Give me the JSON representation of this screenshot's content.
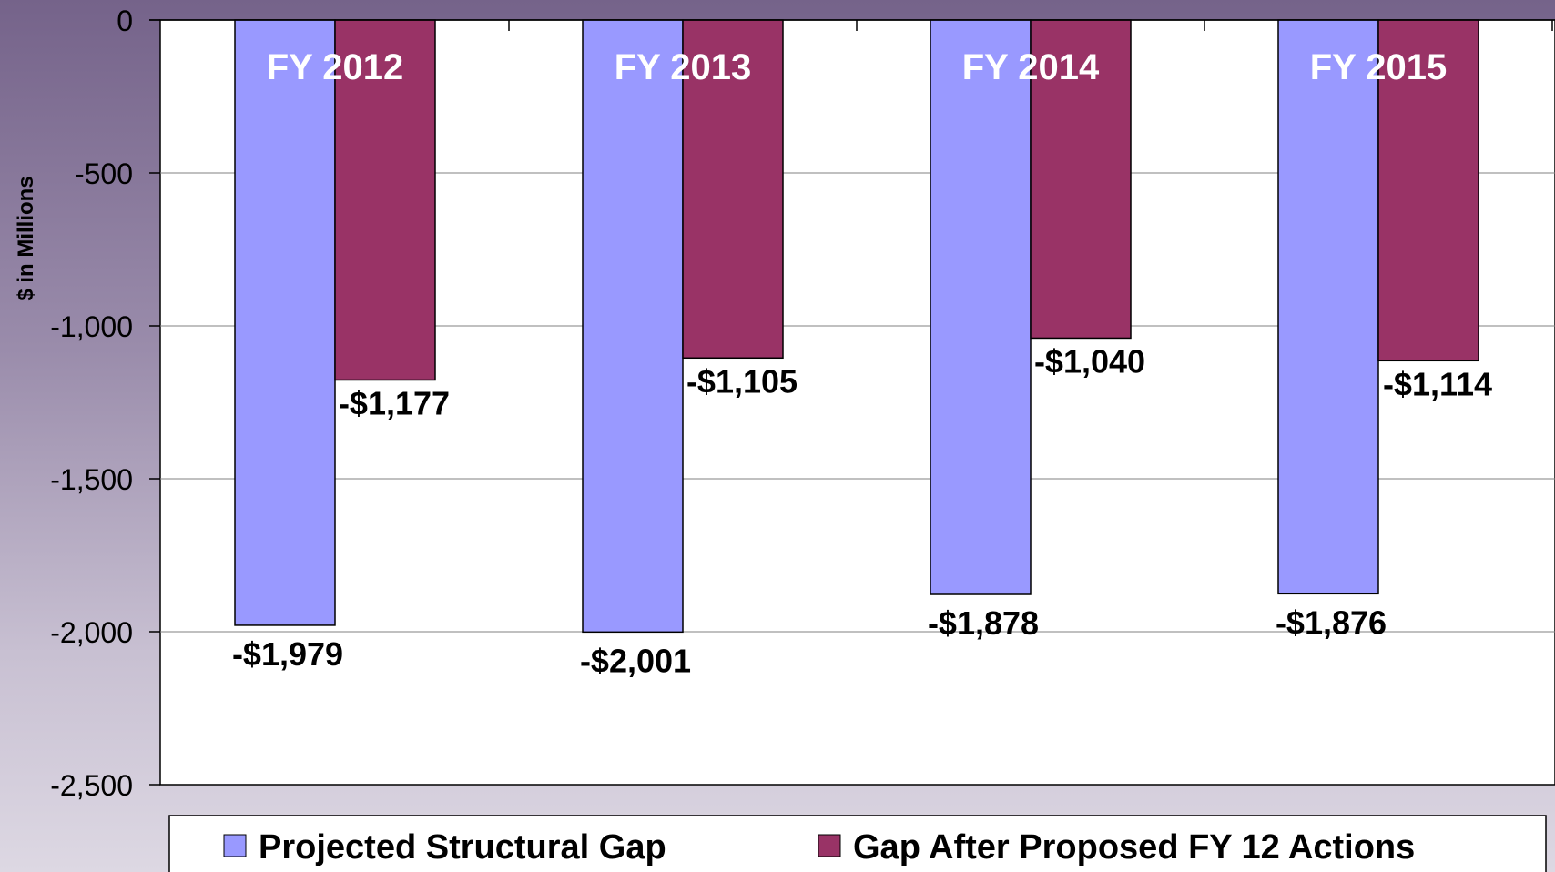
{
  "chart_data": {
    "type": "bar",
    "title": "",
    "xlabel": "",
    "ylabel": "$ in Millions",
    "ylim": [
      -2500,
      0
    ],
    "yticks": [
      0,
      -500,
      -1000,
      -1500,
      -2000,
      -2500
    ],
    "ytick_labels": [
      "0",
      "-500",
      "-1,000",
      "-1,500",
      "-2,000",
      "-2,500"
    ],
    "categories": [
      "FY 2012",
      "FY 2013",
      "FY 2014",
      "FY 2015"
    ],
    "series": [
      {
        "name": "Projected Structural Gap",
        "color": "#9999ff",
        "values": [
          -1979,
          -2001,
          -1878,
          -1876
        ],
        "labels": [
          "-$1,979",
          "-$2,001",
          "-$1,878",
          "-$1,876"
        ]
      },
      {
        "name": "Gap After Proposed FY 12 Actions",
        "color": "#993366",
        "values": [
          -1177,
          -1105,
          -1040,
          -1114
        ],
        "labels": [
          "-$1,177",
          "-$1,105",
          "-$1,040",
          "-$1,114"
        ]
      }
    ],
    "grid": true,
    "legend_position": "bottom"
  }
}
